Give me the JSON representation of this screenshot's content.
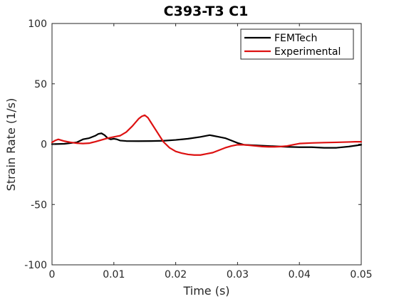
{
  "chart_data": {
    "type": "line",
    "title": "C393-T3 C1",
    "xlabel": "Time (s)",
    "ylabel": "Strain Rate (1/s)",
    "xlim": [
      0,
      0.05
    ],
    "ylim": [
      -100,
      100
    ],
    "xticks": [
      0,
      0.01,
      0.02,
      0.03,
      0.04,
      0.05
    ],
    "xtick_labels": [
      "0",
      "0.01",
      "0.02",
      "0.03",
      "0.04",
      "0.05"
    ],
    "yticks": [
      -100,
      -50,
      0,
      50,
      100
    ],
    "ytick_labels": [
      "-100",
      "-50",
      "0",
      "50",
      "100"
    ],
    "grid": false,
    "legend": {
      "position": "top-right"
    },
    "series": [
      {
        "name": "FEMTech",
        "color": "#000000",
        "x": [
          0,
          0.002,
          0.004,
          0.005,
          0.006,
          0.007,
          0.0075,
          0.008,
          0.0085,
          0.009,
          0.0095,
          0.01,
          0.0105,
          0.011,
          0.012,
          0.014,
          0.016,
          0.018,
          0.02,
          0.022,
          0.024,
          0.0255,
          0.026,
          0.027,
          0.028,
          0.029,
          0.03,
          0.031,
          0.033,
          0.035,
          0.037,
          0.038,
          0.04,
          0.042,
          0.044,
          0.046,
          0.048,
          0.05
        ],
        "y": [
          0,
          0.3,
          1.5,
          4,
          5,
          7,
          8.5,
          9,
          7.5,
          5,
          4,
          4.5,
          4,
          3,
          2.6,
          2.5,
          2.6,
          2.8,
          3.5,
          4.5,
          6,
          7.5,
          7,
          6,
          5,
          3,
          1,
          -0.5,
          -1,
          -1.5,
          -2,
          -2.2,
          -2.5,
          -2.5,
          -3,
          -3,
          -2,
          -0.5
        ]
      },
      {
        "name": "Experimental",
        "color": "#dd1111",
        "x": [
          0,
          0.0005,
          0.001,
          0.002,
          0.003,
          0.004,
          0.005,
          0.006,
          0.007,
          0.008,
          0.009,
          0.01,
          0.0105,
          0.011,
          0.012,
          0.013,
          0.014,
          0.0145,
          0.015,
          0.0155,
          0.016,
          0.017,
          0.018,
          0.019,
          0.02,
          0.021,
          0.022,
          0.023,
          0.024,
          0.025,
          0.026,
          0.027,
          0.028,
          0.029,
          0.03,
          0.031,
          0.032,
          0.033,
          0.034,
          0.035,
          0.036,
          0.037,
          0.038,
          0.039,
          0.04,
          0.042,
          0.044,
          0.046,
          0.048,
          0.049,
          0.05
        ],
        "y": [
          1.5,
          3,
          4,
          2.5,
          1.5,
          0.8,
          0.5,
          0.8,
          2,
          3.5,
          5,
          6,
          6.5,
          7,
          10,
          15,
          21,
          23,
          24,
          22,
          18,
          10,
          2,
          -3,
          -6,
          -7.5,
          -8.5,
          -9,
          -9,
          -8,
          -7,
          -5,
          -3,
          -1.5,
          -0.5,
          -0.5,
          -1,
          -1.5,
          -2,
          -2.2,
          -2.2,
          -2,
          -1.5,
          -0.5,
          0.5,
          1,
          1.3,
          1.5,
          1.8,
          2,
          2
        ]
      }
    ]
  }
}
